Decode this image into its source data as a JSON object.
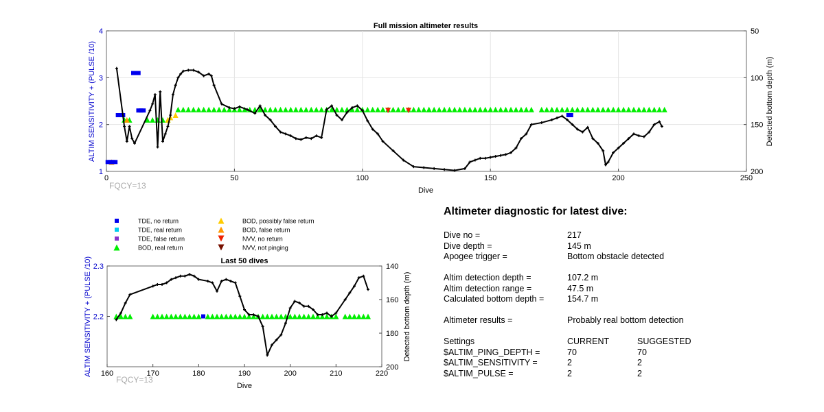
{
  "colors": {
    "axis_left": "#0000cc",
    "tde_no_return": "#0000ee",
    "tde_real_return": "#00ccee",
    "tde_false_return": "#8833cc",
    "bod_real_return": "#00ee00",
    "bod_possibly_false": "#ffcc00",
    "bod_false": "#ff9900",
    "nvv_no_return": "#ee2200",
    "nvv_not_pinging": "#771100",
    "depth_line": "#000000"
  },
  "legend": [
    {
      "label": "TDE, no return",
      "color_key": "tde_no_return",
      "marker": "square"
    },
    {
      "label": "TDE, real return",
      "color_key": "tde_real_return",
      "marker": "square"
    },
    {
      "label": "TDE, false return",
      "color_key": "tde_false_return",
      "marker": "square"
    },
    {
      "label": "BOD, real return",
      "color_key": "bod_real_return",
      "marker": "triangle-up"
    },
    {
      "label": "BOD, possibly false return",
      "color_key": "bod_possibly_false",
      "marker": "triangle-up"
    },
    {
      "label": "BOD, false return",
      "color_key": "bod_false",
      "marker": "triangle-up"
    },
    {
      "label": "NVV, no return",
      "color_key": "nvv_no_return",
      "marker": "triangle-down"
    },
    {
      "label": "NVV, not pinging",
      "color_key": "nvv_not_pinging",
      "marker": "triangle-down"
    }
  ],
  "chart_data": [
    {
      "type": "scatter",
      "title": "Full mission altimeter results",
      "xlabel": "Dive",
      "ylabel": "ALTIM SENSITIVITY + (PULSE /10)",
      "y2label": "Detected bottom depth (m)",
      "annotation": "FQCY=13",
      "xlim": [
        0,
        250
      ],
      "ylim": [
        1,
        4
      ],
      "y2lim": [
        200,
        50
      ],
      "y2_reversed": true,
      "x_ticks": [
        0,
        50,
        100,
        150,
        200,
        250
      ],
      "y_ticks": [
        1,
        2,
        3,
        4
      ],
      "y2_ticks": [
        50,
        100,
        150,
        200
      ],
      "grid": true,
      "markers": {
        "bod_real": {
          "x_ranges": [
            [
              7,
              10
            ],
            [
              16,
              24
            ],
            [
              28,
              126
            ],
            [
              126,
              166
            ],
            [
              170,
              218
            ]
          ],
          "skip": [
            4
          ],
          "y": 2.1,
          "y_upper": 2.32
        },
        "bod_possibly_false": {
          "x": [
            27,
            25,
            24
          ],
          "y": [
            2.2,
            2.15,
            2.1
          ]
        },
        "bod_false": {
          "x": [
            2,
            8
          ],
          "y": [
            1.2,
            2.1
          ]
        },
        "tde_no_return": {
          "x": [
            1,
            2,
            3,
            5,
            6,
            11,
            12,
            13,
            14,
            181
          ],
          "y": [
            1.2,
            1.2,
            1.2,
            2.2,
            2.2,
            3.1,
            3.1,
            2.3,
            2.3,
            2.2
          ]
        },
        "nvv_no_return": {
          "x": [
            110,
            118
          ],
          "y": [
            2.3,
            2.3
          ]
        }
      },
      "depth_series": {
        "x": [
          4,
          7,
          8,
          9,
          10,
          11,
          17,
          18,
          19,
          20,
          21,
          22,
          23,
          24,
          25,
          26,
          27,
          28,
          29,
          30,
          32,
          34,
          36,
          38,
          40,
          41,
          42,
          45,
          48,
          50,
          52,
          55,
          58,
          60,
          62,
          64,
          66,
          68,
          70,
          72,
          74,
          76,
          78,
          80,
          82,
          84,
          86,
          88,
          90,
          92,
          94,
          96,
          98,
          100,
          102,
          104,
          106,
          108,
          112,
          116,
          120,
          124,
          128,
          132,
          136,
          140,
          142,
          144,
          146,
          148,
          150,
          152,
          154,
          156,
          158,
          160,
          162,
          164,
          166,
          170,
          174,
          176,
          178,
          180,
          182,
          184,
          186,
          188,
          190,
          192,
          194,
          195,
          196,
          198,
          200,
          202,
          204,
          206,
          208,
          210,
          212,
          214,
          216,
          217
        ],
        "y": [
          90,
          152,
          168,
          152,
          165,
          170,
          135,
          128,
          118,
          174,
          115,
          168,
          160,
          152,
          140,
          118,
          108,
          100,
          96,
          93,
          92,
          92,
          94,
          98,
          96,
          98,
          108,
          128,
          132,
          133,
          131,
          134,
          138,
          130,
          140,
          145,
          152,
          158,
          160,
          162,
          165,
          166,
          164,
          165,
          162,
          164,
          134,
          130,
          140,
          145,
          137,
          132,
          130,
          135,
          146,
          155,
          160,
          168,
          178,
          188,
          195,
          196,
          197,
          198,
          199,
          197,
          190,
          188,
          186,
          186,
          185,
          184,
          183,
          182,
          180,
          175,
          165,
          160,
          150,
          148,
          145,
          143,
          141,
          145,
          150,
          155,
          158,
          153,
          165,
          170,
          178,
          193,
          190,
          180,
          175,
          170,
          165,
          160,
          162,
          163,
          158,
          150,
          147,
          152
        ]
      }
    },
    {
      "type": "scatter",
      "title": "Last 50 dives",
      "xlabel": "Dive",
      "ylabel": "ALTIM SENSITIVITY + (PULSE /10)",
      "y2label": "Detected bottom depth (m)",
      "annotation": "FQCY=13",
      "xlim": [
        160,
        220
      ],
      "ylim": [
        2.1,
        2.3
      ],
      "y2lim": [
        200,
        140
      ],
      "y2_reversed": true,
      "x_ticks": [
        160,
        170,
        180,
        190,
        200,
        210,
        220
      ],
      "y_ticks": [
        2.2,
        2.3
      ],
      "y2_ticks": [
        140,
        160,
        180,
        200
      ],
      "markers": {
        "bod_real": {
          "x": [
            162,
            163,
            164,
            165,
            170,
            171,
            172,
            173,
            174,
            175,
            176,
            177,
            178,
            179,
            180,
            182,
            183,
            184,
            185,
            186,
            187,
            188,
            189,
            190,
            191,
            192,
            193,
            194,
            195,
            196,
            197,
            198,
            199,
            200,
            201,
            202,
            203,
            204,
            205,
            206,
            207,
            208,
            209,
            210,
            212,
            213,
            214,
            215,
            216,
            217
          ],
          "y": 2.2
        },
        "tde_no_return": {
          "x": [
            181
          ],
          "y": [
            2.2
          ]
        }
      },
      "depth_series": {
        "x": [
          162,
          163,
          164,
          165,
          170,
          171,
          172,
          173,
          174,
          175,
          176,
          177,
          178,
          179,
          180,
          182,
          183,
          184,
          185,
          186,
          187,
          188,
          189,
          190,
          191,
          192,
          193,
          194,
          195,
          196,
          197,
          198,
          199,
          200,
          201,
          202,
          203,
          204,
          205,
          206,
          207,
          208,
          209,
          210,
          212,
          213,
          214,
          215,
          216,
          217
        ],
        "y": [
          172,
          168,
          162,
          157,
          152,
          151,
          151,
          150,
          148,
          147,
          146,
          146,
          145,
          146,
          148,
          149,
          150,
          155,
          149,
          148,
          149,
          150,
          158,
          166,
          169,
          169,
          170,
          176,
          193,
          187,
          184,
          181,
          174,
          165,
          161,
          162,
          164,
          164,
          166,
          169,
          169,
          168,
          170,
          168,
          160,
          156,
          152,
          147,
          146,
          154
        ]
      }
    }
  ],
  "diagnostic": {
    "title": "Altimeter diagnostic for latest dive:",
    "dive_no_label": "Dive no =",
    "dive_no_value": "217",
    "dive_depth_label": "Dive depth =",
    "dive_depth_value": "145 m",
    "apogee_label": "Apogee trigger =",
    "apogee_value": "Bottom obstacle detected",
    "altim_depth_label": "Altim detection depth =",
    "altim_depth_value": "107.2 m",
    "altim_range_label": "Altim detection range =",
    "altim_range_value": "47.5 m",
    "calc_depth_label": "Calculated bottom depth =",
    "calc_depth_value": "154.7 m",
    "results_label": "Altimeter results =",
    "results_value": "Probably real bottom detection",
    "settings_label": "Settings",
    "current_label": "CURRENT",
    "suggested_label": "SUGGESTED",
    "ping_depth_label": "$ALTIM_PING_DEPTH =",
    "ping_depth_current": "70",
    "ping_depth_suggested": "70",
    "sensitivity_label": "$ALTIM_SENSITIVITY =",
    "sensitivity_current": "2",
    "sensitivity_suggested": "2",
    "pulse_label": "$ALTIM_PULSE =",
    "pulse_current": "2",
    "pulse_suggested": "2"
  }
}
